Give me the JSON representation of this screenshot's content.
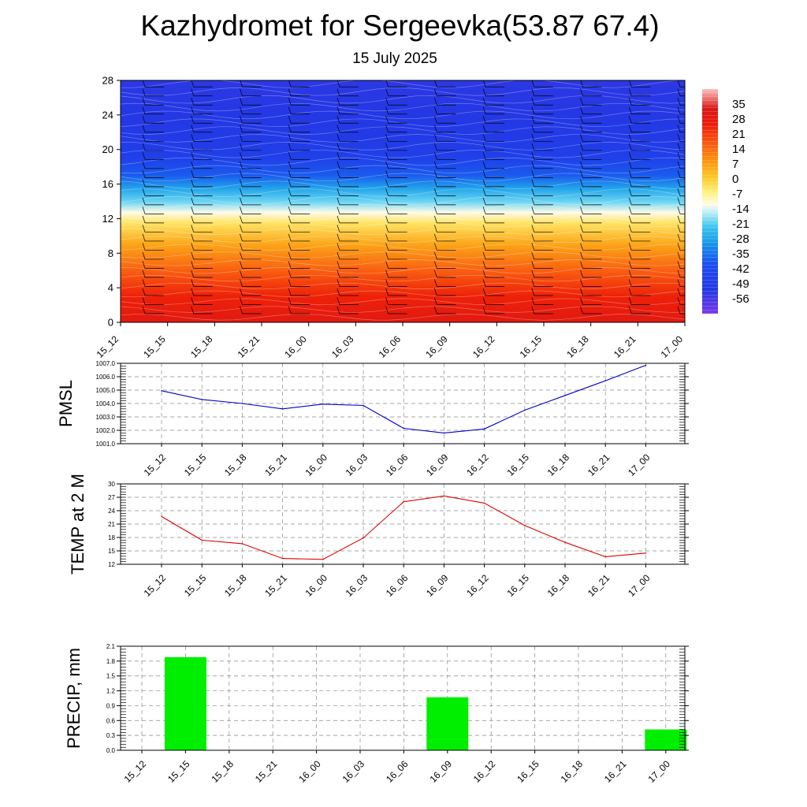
{
  "header": {
    "title": "Kazhydromet for Sergeevka(53.87 67.4)",
    "subtitle": "15 July 2025"
  },
  "time_labels": [
    "15_12",
    "15_15",
    "15_18",
    "15_21",
    "16_00",
    "16_03",
    "16_06",
    "16_09",
    "16_12",
    "16_15",
    "16_18",
    "16_21",
    "17_00"
  ],
  "chart_data": [
    {
      "type": "heatmap",
      "name": "temperature-cross-section",
      "x": [
        "15_12",
        "15_15",
        "15_18",
        "15_21",
        "16_00",
        "16_03",
        "16_06",
        "16_09",
        "16_12",
        "16_15",
        "16_18",
        "16_21",
        "17_00"
      ],
      "y_ticks": [
        0,
        4,
        8,
        12,
        16,
        20,
        24,
        28
      ],
      "ylim": [
        0,
        28
      ],
      "colorbar": {
        "labels": [
          35,
          28,
          21,
          14,
          7,
          0,
          -7,
          -14,
          -21,
          -28,
          -35,
          -42,
          -49,
          -56
        ],
        "range": [
          -63,
          42
        ],
        "stops": [
          {
            "v": 42,
            "c": "#fcc0c0"
          },
          {
            "v": 38,
            "c": "#f07878"
          },
          {
            "v": 33,
            "c": "#d81818"
          },
          {
            "v": 26,
            "c": "#ec1a08"
          },
          {
            "v": 18,
            "c": "#f85010"
          },
          {
            "v": 10,
            "c": "#fa8a10"
          },
          {
            "v": 2,
            "c": "#fdc020"
          },
          {
            "v": -6,
            "c": "#fff07a"
          },
          {
            "v": -12,
            "c": "#fffbe8"
          },
          {
            "v": -16,
            "c": "#b8ecf8"
          },
          {
            "v": -22,
            "c": "#40c8f0"
          },
          {
            "v": -30,
            "c": "#1898e8"
          },
          {
            "v": -40,
            "c": "#1a4cf0"
          },
          {
            "v": -52,
            "c": "#2438e4"
          },
          {
            "v": -63,
            "c": "#7a38e8"
          }
        ]
      },
      "vertical_profile": [
        {
          "level": 0,
          "temp": 30
        },
        {
          "level": 3,
          "temp": 25
        },
        {
          "level": 6,
          "temp": 16
        },
        {
          "level": 9,
          "temp": 6
        },
        {
          "level": 11.5,
          "temp": -4
        },
        {
          "level": 12.7,
          "temp": -12
        },
        {
          "level": 14,
          "temp": -20
        },
        {
          "level": 15.5,
          "temp": -28
        },
        {
          "level": 17,
          "temp": -38
        },
        {
          "level": 19,
          "temp": -47
        },
        {
          "level": 21,
          "temp": -50
        },
        {
          "level": 24,
          "temp": -52
        },
        {
          "level": 28,
          "temp": -53
        }
      ]
    },
    {
      "type": "line",
      "name": "PMSL",
      "ylabel": "PMSL",
      "x": [
        "15_12",
        "15_15",
        "15_18",
        "15_21",
        "16_00",
        "16_03",
        "16_06",
        "16_09",
        "16_12",
        "16_15",
        "16_18",
        "16_21",
        "17_00"
      ],
      "values": [
        1004.95,
        1004.3,
        1004.0,
        1003.6,
        1003.95,
        1003.85,
        1002.15,
        1001.8,
        1002.1,
        1003.5,
        1004.6,
        1005.7,
        1006.85
      ],
      "ylim": [
        1001.0,
        1007.0
      ],
      "y_ticks": [
        "1001.0",
        "1002.0",
        "1003.0",
        "1004.0",
        "1005.0",
        "1006.0",
        "1007.0"
      ],
      "color": "#0000cc"
    },
    {
      "type": "line",
      "name": "TEMP at 2 M",
      "ylabel": "TEMP at 2 M",
      "x": [
        "15_12",
        "15_15",
        "15_18",
        "15_21",
        "16_00",
        "16_03",
        "16_06",
        "16_09",
        "16_12",
        "16_15",
        "16_18",
        "16_21",
        "17_00"
      ],
      "values": [
        22.7,
        17.4,
        16.6,
        13.3,
        13.1,
        17.9,
        26.0,
        27.3,
        25.7,
        20.7,
        16.9,
        13.7,
        14.5
      ],
      "ylim": [
        12,
        30
      ],
      "y_ticks": [
        "12",
        "15",
        "18",
        "21",
        "24",
        "27",
        "30"
      ],
      "color": "#e00000"
    },
    {
      "type": "bar",
      "name": "PRECIP, mm",
      "ylabel": "PRECIP, mm",
      "categories": [
        "15_12",
        "15_15",
        "15_18",
        "15_21",
        "16_00",
        "16_03",
        "16_06",
        "16_09",
        "16_12",
        "16_15",
        "16_18",
        "16_21",
        "17_00"
      ],
      "values": [
        0,
        1.88,
        0,
        0,
        0,
        0,
        0,
        1.07,
        0,
        0,
        0,
        0,
        0.42
      ],
      "ylim": [
        0,
        2.1
      ],
      "y_ticks": [
        "0.0",
        "0.3",
        "0.6",
        "0.9",
        "1.2",
        "1.5",
        "1.8",
        "2.1"
      ],
      "color": "#00ee00"
    }
  ]
}
